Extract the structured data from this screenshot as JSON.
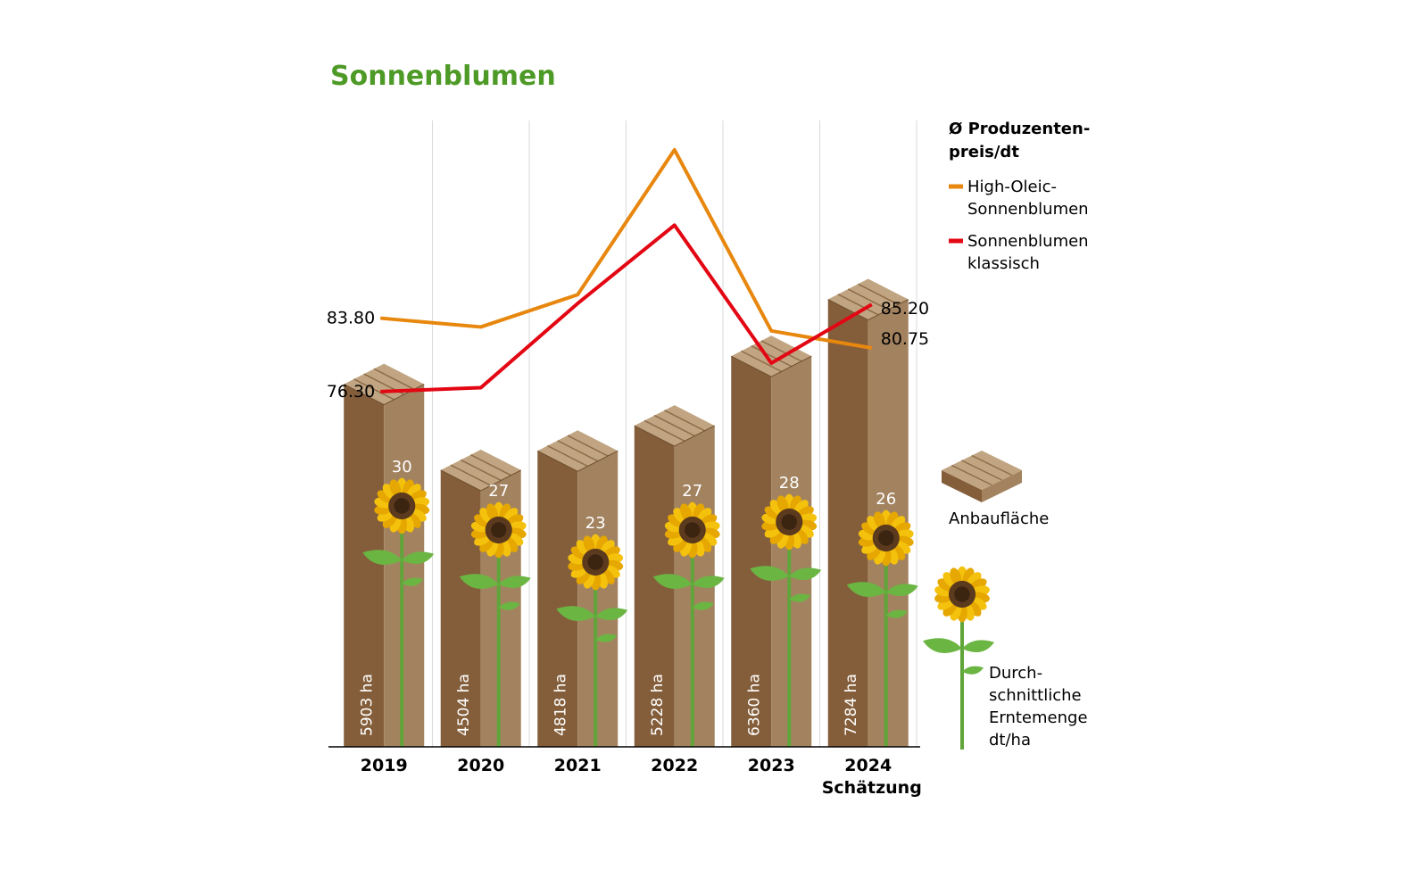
{
  "chart_data": {
    "type": "bar",
    "title": "Sonnenblumen",
    "categories": [
      "2019",
      "2020",
      "2021",
      "2022",
      "2023",
      "2024"
    ],
    "category_sublabels": [
      "",
      "",
      "",
      "",
      "",
      "Schätzung"
    ],
    "bar_series": {
      "name": "Anbaufläche",
      "values": [
        5903,
        4504,
        4818,
        5228,
        6360,
        7284
      ],
      "labels": [
        "5903 ha",
        "4504 ha",
        "4818 ha",
        "5228 ha",
        "6360 ha",
        "7284 ha"
      ],
      "ylim": [
        0,
        7800
      ]
    },
    "yield_series": {
      "name": "Durchschnittliche Erntemenge dt/ha",
      "values": [
        30,
        27,
        23,
        27,
        28,
        26
      ]
    },
    "line_series": [
      {
        "name": "High-Oleic-Sonnenblumen",
        "color": "#E8870E",
        "values": [
          83.8,
          82.9,
          86.2,
          101.0,
          82.5,
          80.75
        ],
        "start_label": "83.80",
        "end_label": "80.75"
      },
      {
        "name": "Sonnenblumen klassisch",
        "color": "#E30613",
        "values": [
          76.3,
          76.7,
          85.3,
          93.3,
          79.2,
          85.2
        ],
        "start_label": "76.30",
        "end_label": "85.20"
      }
    ],
    "line_ylim": [
      40,
      104
    ],
    "grid": true,
    "legend": {
      "title_line1": "Ø Produzenten-",
      "title_line2": "preis/dt",
      "high_oleic_line1": "High-Oleic-",
      "high_oleic_line2": "Sonnenblumen",
      "klassisch_line1": "Sonnenblumen",
      "klassisch_line2": "klassisch",
      "area_label": "Anbaufläche",
      "yield_line1": "Durch-",
      "yield_line2": "schnittliche",
      "yield_line3": "Erntemenge",
      "yield_line4": "dt/ha"
    },
    "colors": {
      "title": "#4E9A26",
      "bar_dark": "#845E3A",
      "bar_light": "#A3835F",
      "bar_top": "#C1A582",
      "bar_top_lines": "#8E6C49",
      "grid": "#D9D9D9",
      "axis": "#000000",
      "petal": "#F4C20D",
      "petal_dark": "#E6A700",
      "flower_center": "#5B3A1E",
      "stem": "#5FA53A",
      "leaf": "#6BB543"
    }
  }
}
